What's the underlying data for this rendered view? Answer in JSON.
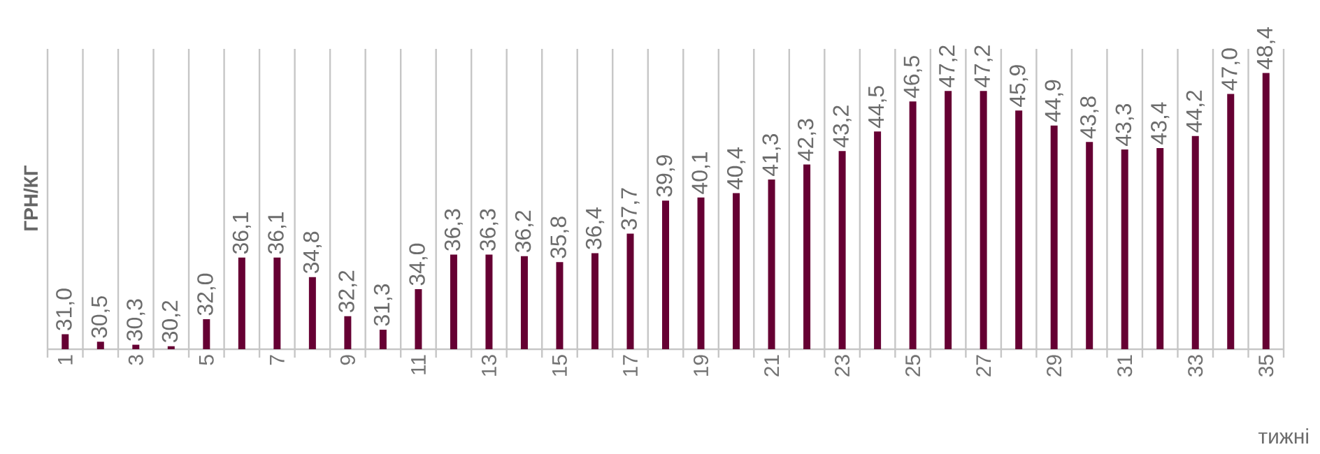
{
  "chart_data": {
    "type": "bar",
    "xlabel": "тижні",
    "ylabel": "ГРН/КГ",
    "categories": [
      "1",
      null,
      "3",
      null,
      "5",
      null,
      "7",
      null,
      "9",
      null,
      "11",
      null,
      "13",
      null,
      "15",
      null,
      "17",
      null,
      "19",
      null,
      "21",
      null,
      "23",
      null,
      "25",
      null,
      "27",
      null,
      "29",
      null,
      "31",
      null,
      "33",
      null,
      "35"
    ],
    "values": [
      31.0,
      30.5,
      30.3,
      30.2,
      32.0,
      36.1,
      36.1,
      34.8,
      32.2,
      31.3,
      34.0,
      36.3,
      36.3,
      36.2,
      35.8,
      36.4,
      37.7,
      39.9,
      40.1,
      40.4,
      41.3,
      42.3,
      43.2,
      44.5,
      46.5,
      47.2,
      47.2,
      45.9,
      44.9,
      43.8,
      43.3,
      43.4,
      44.2,
      47.0,
      48.4
    ],
    "value_labels": [
      "31,0",
      "30,5",
      "30,3",
      "30,2",
      "32,0",
      "36,1",
      "36,1",
      "34,8",
      "32,2",
      "31,3",
      "34,0",
      "36,3",
      "36,3",
      "36,2",
      "35,8",
      "36,4",
      "37,7",
      "39,9",
      "40,1",
      "40,4",
      "41,3",
      "42,3",
      "43,2",
      "44,5",
      "46,5",
      "47,2",
      "47,2",
      "45,9",
      "44,9",
      "43,8",
      "43,3",
      "43,4",
      "44,2",
      "47,0",
      "48,4"
    ],
    "color": "#660033",
    "ylim": [
      30,
      50
    ],
    "tick_labels": "x",
    "grid": "x"
  }
}
